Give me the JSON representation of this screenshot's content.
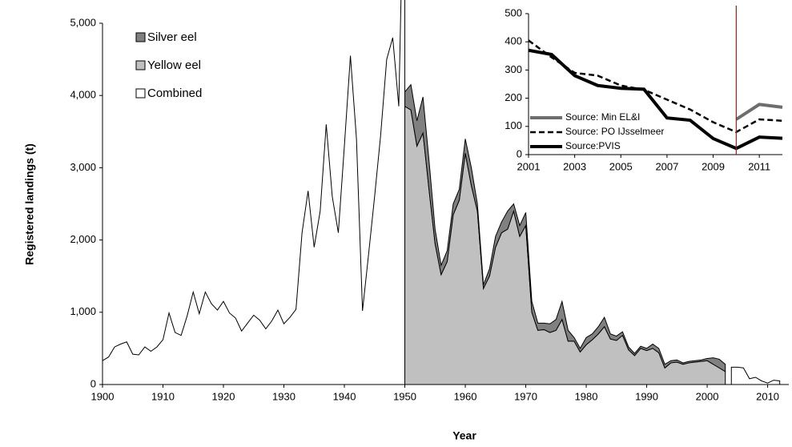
{
  "chart_data": [
    {
      "type": "area",
      "x_label": "Year",
      "y_label": "Registered landings (t)",
      "x": [
        1900,
        1901,
        1902,
        1903,
        1904,
        1905,
        1906,
        1907,
        1908,
        1909,
        1910,
        1911,
        1912,
        1913,
        1914,
        1915,
        1916,
        1917,
        1918,
        1919,
        1920,
        1921,
        1922,
        1923,
        1924,
        1925,
        1926,
        1927,
        1928,
        1929,
        1930,
        1931,
        1932,
        1933,
        1934,
        1935,
        1936,
        1937,
        1938,
        1939,
        1940,
        1941,
        1942,
        1943,
        1944,
        1945,
        1946,
        1947,
        1948,
        1949,
        1950,
        1951,
        1952,
        1953,
        1954,
        1955,
        1956,
        1957,
        1958,
        1959,
        1960,
        1961,
        1962,
        1963,
        1964,
        1965,
        1966,
        1967,
        1968,
        1969,
        1970,
        1971,
        1972,
        1973,
        1974,
        1975,
        1976,
        1977,
        1978,
        1979,
        1980,
        1981,
        1982,
        1983,
        1984,
        1985,
        1986,
        1987,
        1988,
        1989,
        1990,
        1991,
        1992,
        1993,
        1994,
        1995,
        1996,
        1997,
        1998,
        1999,
        2000,
        2001,
        2002,
        2003,
        2004,
        2005,
        2006,
        2007,
        2008,
        2009,
        2010,
        2011,
        2012
      ],
      "series": [
        {
          "name": "Silver eel",
          "color": "#808080",
          "stacked": true,
          "values": [
            null,
            null,
            null,
            null,
            null,
            null,
            null,
            null,
            null,
            null,
            null,
            null,
            null,
            null,
            null,
            null,
            null,
            null,
            null,
            null,
            null,
            null,
            null,
            null,
            null,
            null,
            null,
            null,
            null,
            null,
            null,
            null,
            null,
            null,
            null,
            null,
            null,
            null,
            null,
            null,
            null,
            null,
            null,
            null,
            null,
            null,
            null,
            null,
            null,
            null,
            200,
            350,
            350,
            500,
            400,
            200,
            130,
            150,
            150,
            150,
            200,
            250,
            100,
            50,
            100,
            150,
            150,
            250,
            100,
            150,
            180,
            150,
            100,
            90,
            120,
            150,
            250,
            150,
            50,
            50,
            100,
            80,
            100,
            130,
            70,
            60,
            50,
            40,
            30,
            30,
            30,
            60,
            60,
            50,
            30,
            30,
            20,
            20,
            20,
            20,
            30,
            90,
            120,
            100,
            null,
            null,
            null,
            null,
            null,
            null,
            null,
            null,
            null
          ]
        },
        {
          "name": "Yellow eel",
          "color": "#c0c0c0",
          "stacked": true,
          "values": [
            null,
            null,
            null,
            null,
            null,
            null,
            null,
            null,
            null,
            null,
            null,
            null,
            null,
            null,
            null,
            null,
            null,
            null,
            null,
            null,
            null,
            null,
            null,
            null,
            null,
            null,
            null,
            null,
            null,
            null,
            null,
            null,
            null,
            null,
            null,
            null,
            null,
            null,
            null,
            null,
            null,
            null,
            null,
            null,
            null,
            null,
            null,
            null,
            null,
            null,
            3850,
            3800,
            3300,
            3480,
            2700,
            1950,
            1520,
            1700,
            2350,
            2550,
            3200,
            2750,
            2400,
            1330,
            1500,
            1900,
            2100,
            2150,
            2400,
            2050,
            2200,
            1000,
            750,
            760,
            720,
            750,
            900,
            600,
            600,
            450,
            550,
            620,
            700,
            800,
            630,
            610,
            680,
            480,
            400,
            500,
            470,
            500,
            440,
            230,
            300,
            310,
            280,
            300,
            310,
            320,
            330,
            280,
            230,
            180,
            null,
            null,
            null,
            null,
            null,
            null,
            null,
            null,
            null
          ]
        },
        {
          "name": "Combined",
          "color": "#ffffff",
          "stacked": false,
          "values": [
            330,
            380,
            520,
            560,
            590,
            420,
            410,
            520,
            460,
            520,
            620,
            990,
            720,
            680,
            950,
            1280,
            980,
            1280,
            1120,
            1030,
            1150,
            990,
            920,
            740,
            850,
            960,
            890,
            770,
            880,
            1030,
            840,
            930,
            1040,
            2100,
            2680,
            1900,
            2400,
            3600,
            2600,
            2100,
            3300,
            4550,
            3400,
            1020,
            1800,
            2600,
            3450,
            4500,
            4800,
            3850,
            3850,
            null,
            null,
            null,
            null,
            null,
            null,
            null,
            null,
            null,
            null,
            null,
            null,
            null,
            null,
            null,
            null,
            null,
            null,
            null,
            null,
            null,
            null,
            null,
            null,
            null,
            null,
            null,
            null,
            null,
            null,
            null,
            null,
            null,
            null,
            null,
            null,
            null,
            null,
            null,
            null,
            null,
            null,
            null,
            null,
            null,
            null,
            null,
            null,
            null,
            null,
            null,
            null,
            null,
            240,
            240,
            230,
            80,
            100,
            50,
            20,
            60,
            50
          ]
        }
      ],
      "xlim": [
        1900,
        2013.5
      ],
      "xticks": [
        1900,
        1910,
        1920,
        1930,
        1940,
        1950,
        1960,
        1970,
        1980,
        1990,
        2000,
        2010
      ],
      "ylim": [
        0,
        5000
      ],
      "yticks": [
        0,
        {
          "value": 1000,
          "label": "1,000"
        },
        {
          "value": 2000,
          "label": "2,000"
        },
        {
          "value": 3000,
          "label": "3,000"
        },
        {
          "value": 4000,
          "label": "4,000"
        },
        {
          "value": 5000,
          "label": "5,000"
        }
      ],
      "legend": "top-left"
    },
    {
      "type": "line",
      "x": [
        2001,
        2002,
        2003,
        2004,
        2005,
        2006,
        2007,
        2008,
        2009,
        2010,
        2011,
        2012
      ],
      "series": [
        {
          "name": "Source: Min EL&I",
          "color": "#6d6d6d",
          "dashed": false,
          "values": [
            null,
            null,
            null,
            null,
            null,
            null,
            null,
            null,
            null,
            125,
            178,
            168
          ]
        },
        {
          "name": "Source: PO IJsselmeer",
          "color": "#000000",
          "dashed": true,
          "values": [
            405,
            345,
            290,
            280,
            245,
            230,
            195,
            160,
            115,
            80,
            125,
            120
          ]
        },
        {
          "name": "Source:PVIS",
          "color": "#000000",
          "dashed": false,
          "values": [
            370,
            355,
            280,
            245,
            235,
            232,
            130,
            122,
            57,
            22,
            62,
            58
          ]
        }
      ],
      "vline": 2010,
      "vline_color": "#e00000",
      "xlim": [
        2001,
        2012
      ],
      "xticks": [
        2001,
        2003,
        2005,
        2007,
        2009,
        2011
      ],
      "ylim": [
        0,
        500
      ],
      "yticks": [
        0,
        100,
        200,
        300,
        400,
        500
      ],
      "legend": "left"
    }
  ]
}
